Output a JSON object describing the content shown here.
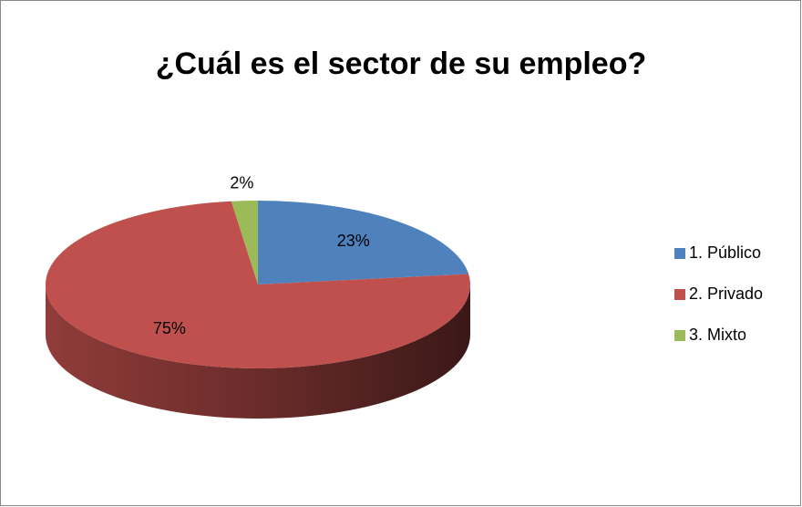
{
  "chart_data": {
    "type": "pie",
    "title": "¿Cuál es el sector de su empleo?",
    "categories": [
      "1. Público",
      "2. Privado",
      "3. Mixto"
    ],
    "values": [
      23,
      75,
      2
    ],
    "value_labels": [
      "23%",
      "75%",
      "2%"
    ],
    "colors": [
      "#4f81bd",
      "#c0504d",
      "#9bbb59"
    ],
    "legend": "right"
  }
}
